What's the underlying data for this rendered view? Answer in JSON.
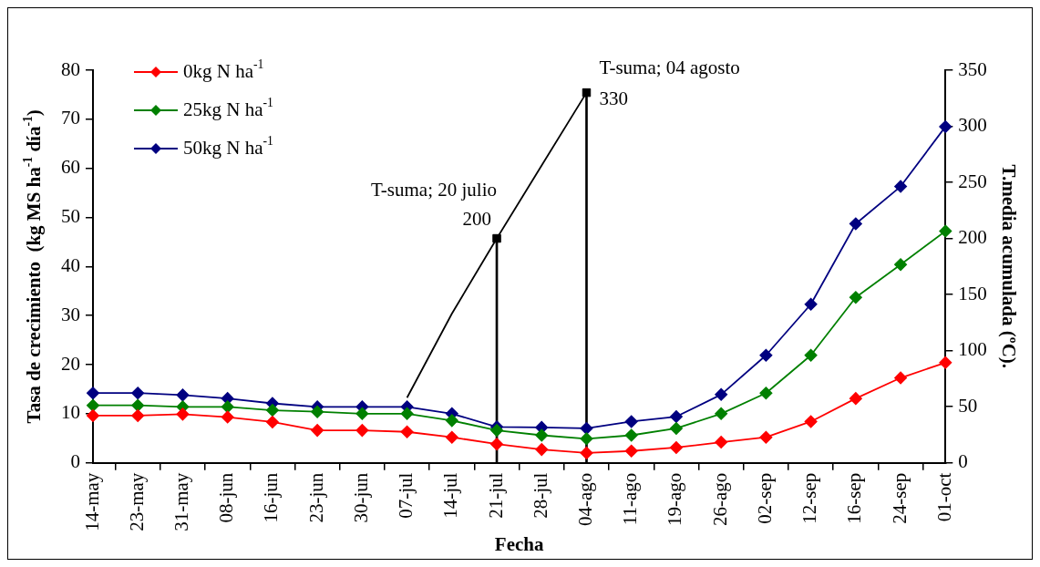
{
  "chart_data": {
    "type": "line",
    "xlabel": "Fecha",
    "ylabel": "Tasa de crecimiento  (kg MS ha$^{-1}$ día$^{-1}$)",
    "y2label": "T.media acumulada (ºC).",
    "categories": [
      "14-may",
      "23-may",
      "31-may",
      "08-jun",
      "16-jun",
      "23-jun",
      "30-jun",
      "07-jul",
      "14-jul",
      "21-jul",
      "28-jul",
      "04-ago",
      "11-ago",
      "19-ago",
      "26-ago",
      "02-sep",
      "12-sep",
      "16-sep",
      "24-sep",
      "01-oct"
    ],
    "series": [
      {
        "name": "0kg N ha$^{-1}$",
        "marker": "diamond",
        "color": "#ff0000",
        "values": [
          9.6,
          9.6,
          9.9,
          9.3,
          8.3,
          6.6,
          6.6,
          6.3,
          5.2,
          3.8,
          2.7,
          2.0,
          2.4,
          3.1,
          4.2,
          5.2,
          8.4,
          13.1,
          17.3,
          20.4
        ]
      },
      {
        "name": "25kg N ha$^{-1}$",
        "marker": "diamond",
        "color": "#008000",
        "values": [
          11.7,
          11.7,
          11.4,
          11.4,
          10.7,
          10.4,
          10.0,
          10.0,
          8.6,
          6.6,
          5.6,
          4.9,
          5.6,
          7.0,
          10.0,
          14.2,
          21.9,
          33.7,
          40.4,
          47.2
        ]
      },
      {
        "name": "50kg N ha$^{-1}$",
        "marker": "diamond",
        "color": "#000080",
        "values": [
          14.2,
          14.2,
          13.8,
          13.1,
          12.1,
          11.4,
          11.4,
          11.4,
          10.0,
          7.3,
          7.2,
          7.0,
          8.4,
          9.4,
          13.9,
          21.9,
          32.3,
          48.7,
          56.3,
          68.5
        ]
      },
      {
        "axis": "y2",
        "marker": "none",
        "color": "#000000",
        "values": [
          null,
          null,
          null,
          null,
          null,
          null,
          null,
          58,
          133,
          200,
          265,
          330,
          null,
          null,
          null,
          null,
          null,
          null,
          null,
          null
        ]
      },
      {
        "type": "bar",
        "axis": "y2",
        "color": "#000000",
        "values": [
          null,
          null,
          null,
          null,
          null,
          null,
          null,
          null,
          null,
          200,
          null,
          330,
          null,
          null,
          null,
          null,
          null,
          null,
          null,
          null
        ]
      },
      {
        "type": "scatter",
        "axis": "y2",
        "marker": "square",
        "color": "#000000",
        "values": [
          null,
          null,
          null,
          null,
          null,
          null,
          null,
          null,
          null,
          200,
          null,
          330,
          null,
          null,
          null,
          null,
          null,
          null,
          null,
          null
        ],
        "value_labels": [
          null,
          null,
          null,
          null,
          null,
          null,
          null,
          null,
          null,
          "200",
          null,
          "330",
          null,
          null,
          null,
          null,
          null,
          null,
          null,
          null
        ]
      }
    ],
    "annotations": [
      "T-suma; 20 julio",
      "T-suma; 04 agosto"
    ],
    "ylim": [
      0,
      80
    ],
    "yticks": [
      0,
      10,
      20,
      30,
      40,
      50,
      60,
      70,
      80
    ],
    "y2lim": [
      0,
      350
    ],
    "y2ticks": [
      0,
      50,
      100,
      150,
      200,
      250,
      300,
      350
    ],
    "grid": false,
    "legend": "top left",
    "line_style": "solid"
  }
}
